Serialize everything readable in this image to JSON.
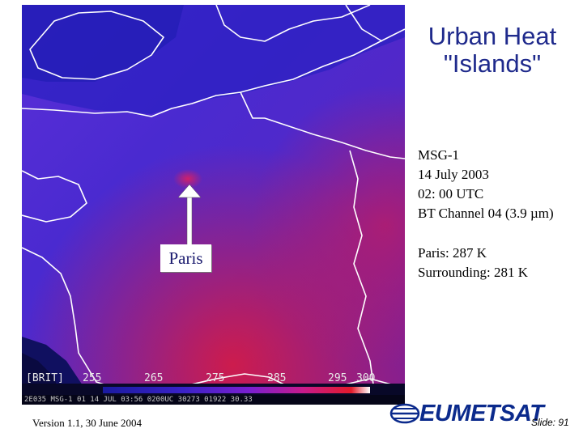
{
  "title_lines": [
    "Urban Heat",
    "\"Islands\""
  ],
  "info": {
    "satellite": "MSG-1",
    "date": "14 July 2003",
    "time": "02: 00 UTC",
    "channel": "BT Channel 04 (3.9 µm)"
  },
  "stats": {
    "paris": "Paris: 287 K",
    "surrounding": "Surrounding: 281 K"
  },
  "map_label": "Paris",
  "scale": {
    "tag": "[BRIT]",
    "ticks": [
      "255",
      "265",
      "275",
      "285",
      "295",
      "300"
    ],
    "colors": [
      "#1a1aa0",
      "#3a22c8",
      "#7a1fd0",
      "#c81a8c",
      "#e21a2a",
      "#ffffff"
    ]
  },
  "image_footer": "2E035 MSG-1     01 14 JUL 03:56 0200UC 30273 01922 30.33",
  "footer": {
    "version": "Version 1.1, 30 June 2004",
    "logo": "EUMETSAT",
    "slide": "Slide: 91"
  },
  "colors": {
    "title": "#1f2a8c",
    "logo": "#0b2a8c"
  }
}
